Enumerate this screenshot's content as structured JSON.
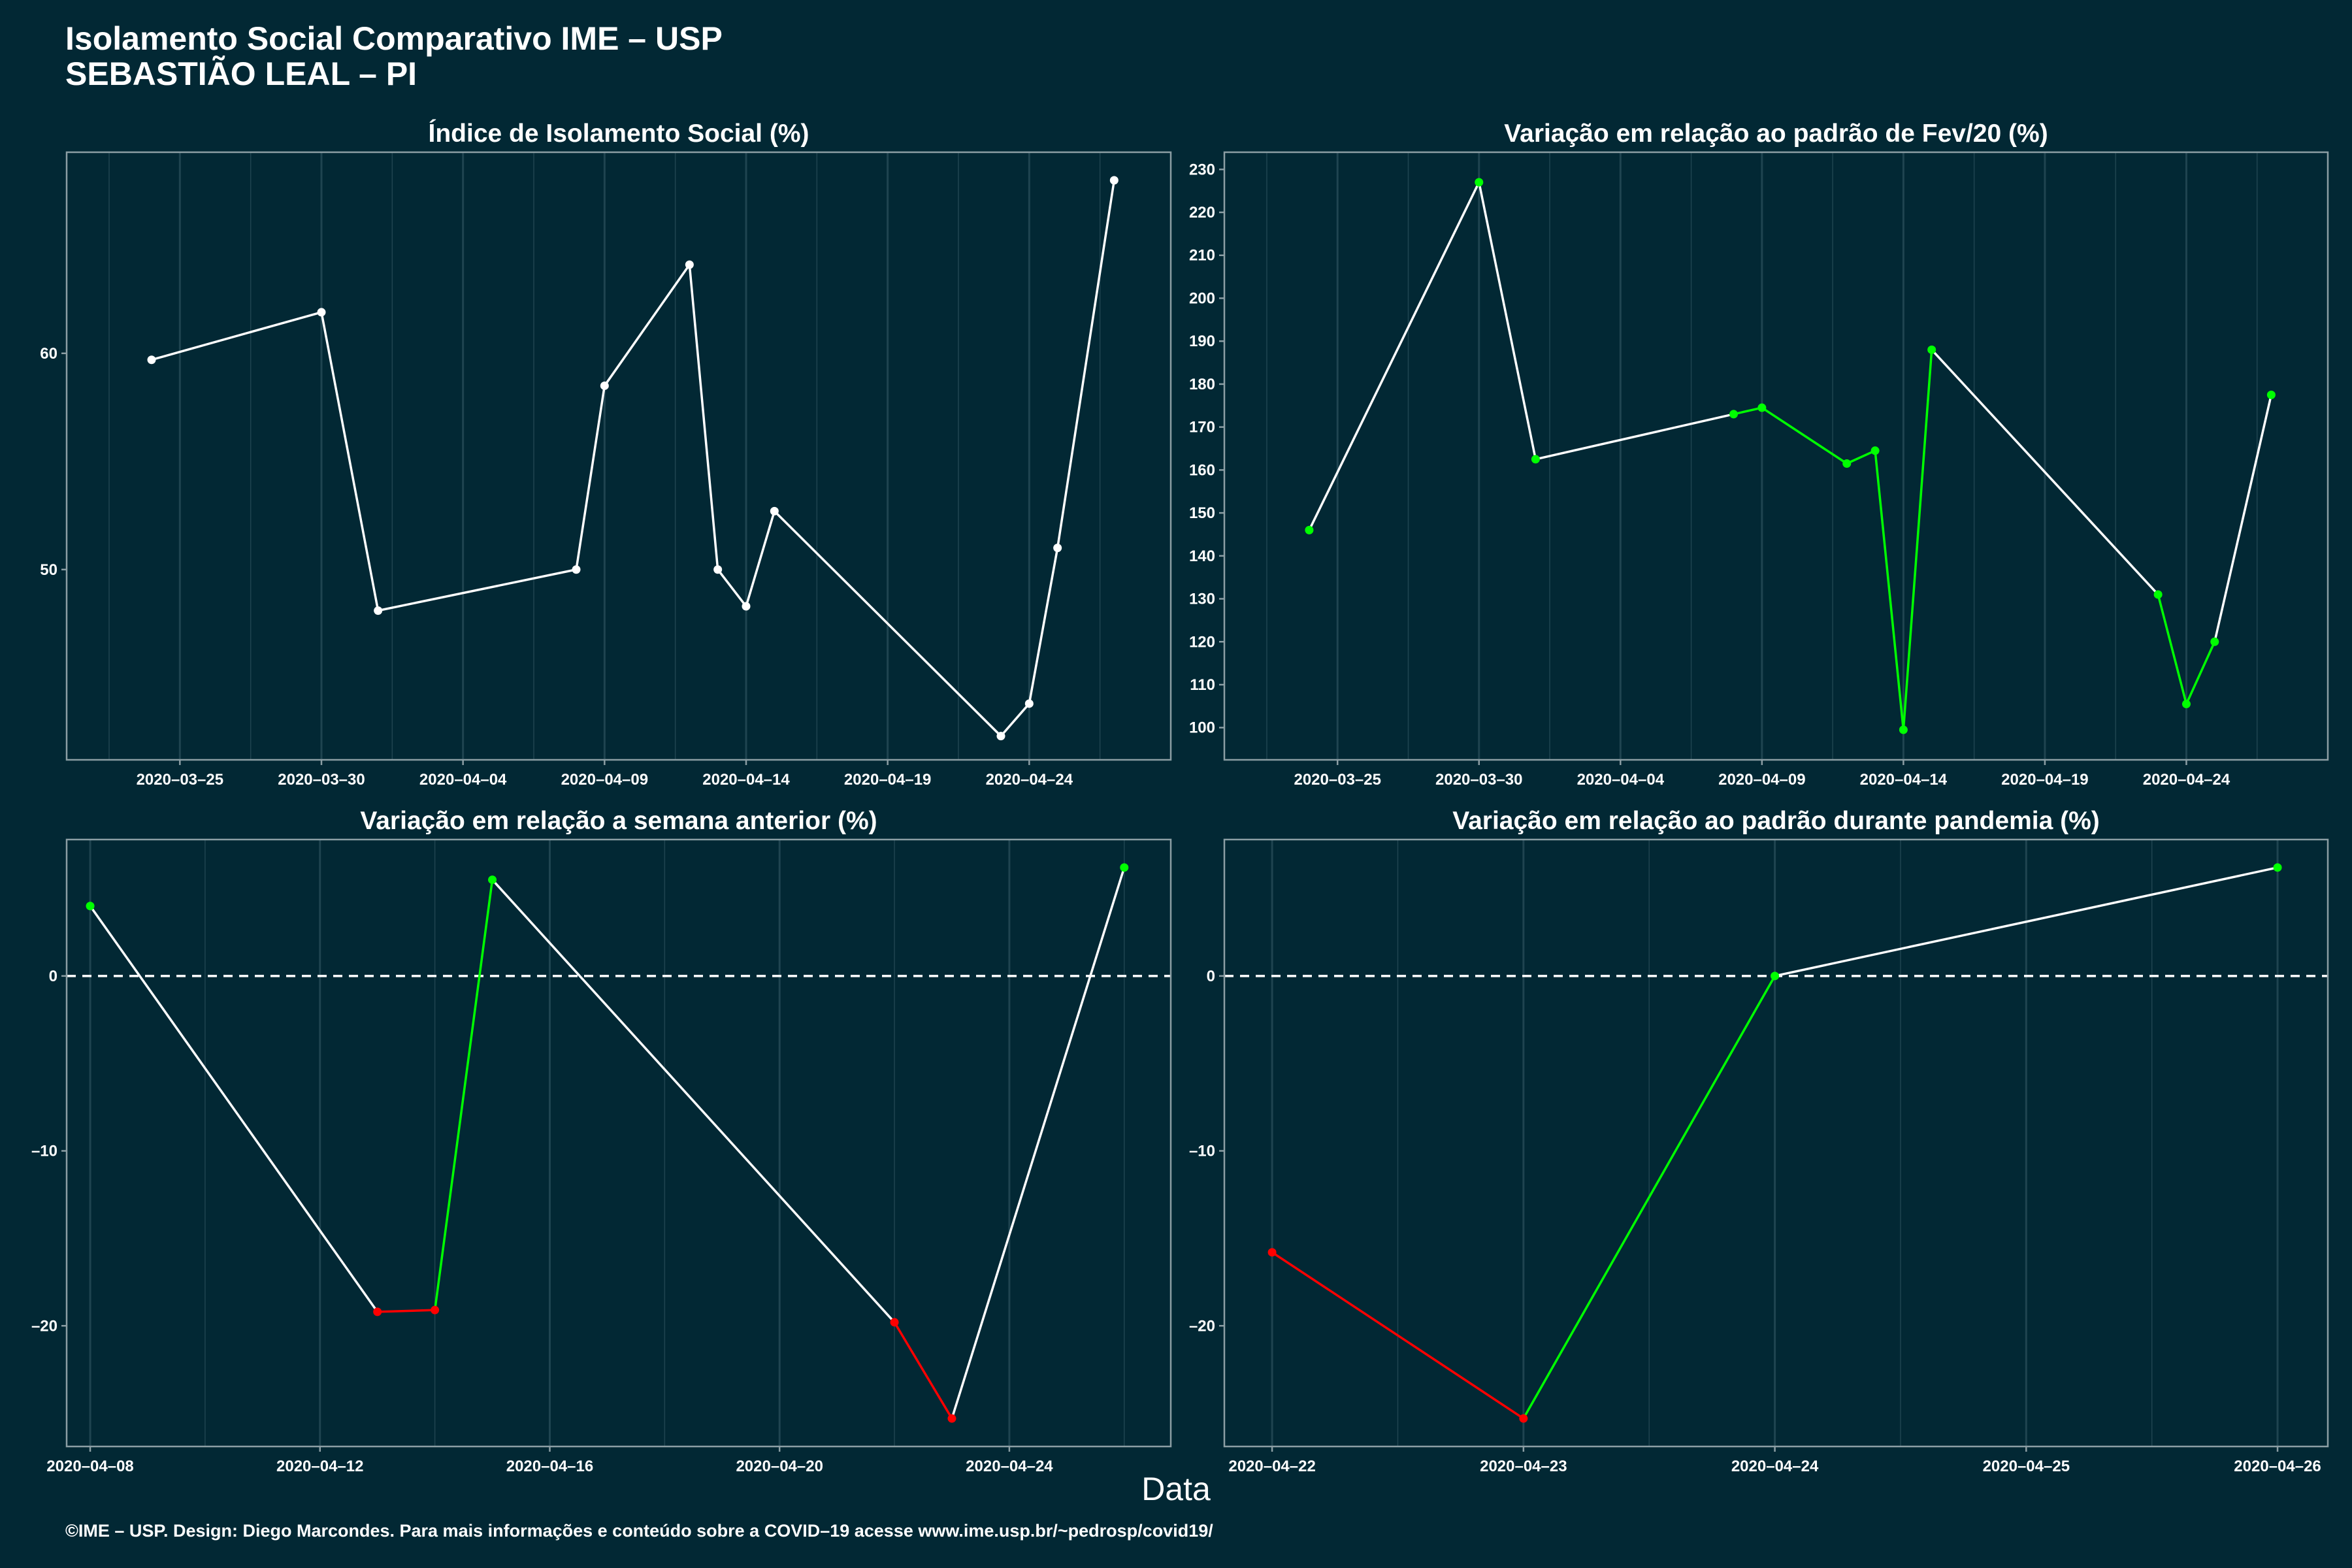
{
  "header": {
    "title_line1": "Isolamento Social Comparativo IME – USP",
    "title_line2": "SEBASTIÃO LEAL – PI"
  },
  "xlabel": "Data",
  "caption": "©IME – USP. Design: Diego Marcondes. Para mais informações e conteúdo sobre a COVID–19 acesse www.ime.usp.br/~pedrosp/covid19/",
  "colors": {
    "background": "#022834",
    "line": "#ffffff",
    "increase": "#00ff00",
    "decrease": "#ff0000",
    "grid": "#1f4450",
    "border": "#8c9ea4"
  },
  "chart_data": [
    {
      "type": "line",
      "title": "Índice de Isolamento Social (%)",
      "xlabel": "Data",
      "ylabel": "",
      "x_type": "date",
      "xlim": [
        "2020-03-21",
        "2020-04-29"
      ],
      "ylim": [
        41.2,
        69.3
      ],
      "x_ticks": [
        "2020-03-25",
        "2020-03-30",
        "2020-04-04",
        "2020-04-09",
        "2020-04-14",
        "2020-04-19",
        "2020-04-24"
      ],
      "y_ticks": [
        50,
        60
      ],
      "grid": true,
      "zero_line": false,
      "x": [
        "2020-03-24",
        "2020-03-30",
        "2020-04-01",
        "2020-04-08",
        "2020-04-09",
        "2020-04-12",
        "2020-04-13",
        "2020-04-14",
        "2020-04-15",
        "2020-04-23",
        "2020-04-24",
        "2020-04-25",
        "2020-04-27"
      ],
      "y": [
        59.7,
        61.9,
        48.1,
        50.0,
        58.5,
        64.1,
        50.0,
        48.3,
        52.7,
        42.3,
        43.8,
        51.0,
        68.0
      ],
      "point_colors": [
        "#ffffff",
        "#ffffff",
        "#ffffff",
        "#ffffff",
        "#ffffff",
        "#ffffff",
        "#ffffff",
        "#ffffff",
        "#ffffff",
        "#ffffff",
        "#ffffff",
        "#ffffff",
        "#ffffff"
      ]
    },
    {
      "type": "line",
      "title": "Variação em relação ao padrão de Fev/20 (%)",
      "xlabel": "Data",
      "ylabel": "",
      "x_type": "date",
      "xlim": [
        "2020-03-21",
        "2020-04-29"
      ],
      "ylim": [
        92.5,
        234.0
      ],
      "x_ticks": [
        "2020-03-25",
        "2020-03-30",
        "2020-04-04",
        "2020-04-09",
        "2020-04-14",
        "2020-04-19",
        "2020-04-24"
      ],
      "y_ticks": [
        100,
        110,
        120,
        130,
        140,
        150,
        160,
        170,
        180,
        190,
        200,
        210,
        220,
        230
      ],
      "grid": true,
      "zero_line": false,
      "x": [
        "2020-03-24",
        "2020-03-30",
        "2020-04-01",
        "2020-04-08",
        "2020-04-09",
        "2020-04-12",
        "2020-04-13",
        "2020-04-14",
        "2020-04-15",
        "2020-04-23",
        "2020-04-24",
        "2020-04-25",
        "2020-04-27"
      ],
      "y": [
        146,
        227,
        162.5,
        173,
        174.5,
        161.5,
        164.5,
        99.5,
        188,
        131,
        105.5,
        120,
        177.5
      ],
      "point_colors": [
        "#00ff00",
        "#00ff00",
        "#00ff00",
        "#00ff00",
        "#00ff00",
        "#00ff00",
        "#00ff00",
        "#00ff00",
        "#00ff00",
        "#00ff00",
        "#00ff00",
        "#00ff00",
        "#00ff00"
      ],
      "segment_colors": [
        "#ffffff",
        "#ffffff",
        "#ffffff",
        "#00ff00",
        "#00ff00",
        "#00ff00",
        "#00ff00",
        "#00ff00",
        "#ffffff",
        "#00ff00",
        "#00ff00",
        "#ffffff"
      ]
    },
    {
      "type": "line",
      "title": "Variação em relação a semana anterior (%)",
      "xlabel": "Data",
      "ylabel": "",
      "x_type": "date",
      "xlim": [
        "2020-04-07.59",
        "2020-04-26.81"
      ],
      "ylim": [
        -26.9,
        7.8
      ],
      "x_ticks": [
        "2020-04-08",
        "2020-04-12",
        "2020-04-16",
        "2020-04-20",
        "2020-04-24"
      ],
      "y_ticks": [
        -20,
        -10,
        0
      ],
      "grid": true,
      "zero_line": true,
      "x": [
        "2020-04-08",
        "2020-04-13",
        "2020-04-14",
        "2020-04-15",
        "2020-04-22",
        "2020-04-23",
        "2020-04-26"
      ],
      "y": [
        4.0,
        -19.2,
        -19.1,
        5.5,
        -19.8,
        -25.3,
        6.2
      ],
      "point_colors": [
        "#00ff00",
        "#ff0000",
        "#ff0000",
        "#00ff00",
        "#ff0000",
        "#ff0000",
        "#00ff00"
      ],
      "segment_colors": [
        "#ffffff",
        "#ff0000",
        "#00ff00",
        "#ffffff",
        "#ff0000",
        "#ffffff"
      ]
    },
    {
      "type": "line",
      "title": "Variação em relação ao padrão durante pandemia (%)",
      "xlabel": "Data",
      "ylabel": "",
      "x_type": "date",
      "xlim": [
        "2020-04-21.81",
        "2020-04-26.2"
      ],
      "ylim": [
        -26.9,
        7.8
      ],
      "x_ticks": [
        "2020-04-22",
        "2020-04-23",
        "2020-04-24",
        "2020-04-25",
        "2020-04-26"
      ],
      "y_ticks": [
        -20,
        -10,
        0
      ],
      "grid": true,
      "zero_line": true,
      "x": [
        "2020-04-22",
        "2020-04-23",
        "2020-04-24",
        "2020-04-26"
      ],
      "y": [
        -15.8,
        -25.3,
        0.0,
        6.2
      ],
      "point_colors": [
        "#ff0000",
        "#ff0000",
        "#00ff00",
        "#00ff00"
      ],
      "segment_colors": [
        "#ff0000",
        "#00ff00",
        "#ffffff"
      ]
    }
  ]
}
